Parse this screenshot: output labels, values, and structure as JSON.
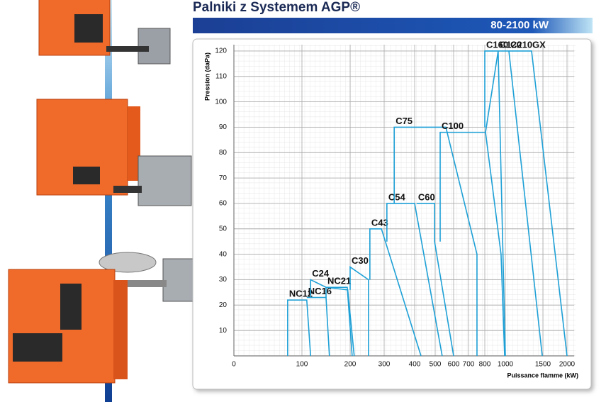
{
  "header": {
    "title": "Palniki z Systemem AGP®",
    "range": "80-2100 kW"
  },
  "chart_data": {
    "type": "envelope",
    "y_label": "Pression (daPa)",
    "x_label": "Puissance flamme (kW)",
    "ylim": [
      0,
      122.5
    ],
    "yticks": [
      10,
      20,
      30,
      40,
      50,
      60,
      70,
      80,
      90,
      100,
      110,
      120
    ],
    "xlim": [
      0,
      2150
    ],
    "xticks": [
      0,
      100,
      200,
      300,
      400,
      500,
      600,
      700,
      800,
      1000,
      1500,
      2000
    ],
    "grid": true,
    "color": "#1ea0d6",
    "series": [
      {
        "name": "NC12",
        "x": [
          79,
          79,
          110,
          118
        ],
        "y": [
          0,
          22,
          22,
          0
        ]
      },
      {
        "name": "NC16",
        "x": [
          110,
          150,
          157
        ],
        "y": [
          23,
          23,
          0
        ]
      },
      {
        "name": "C24",
        "x": [
          118,
          118,
          150,
          195,
          212
        ],
        "y": [
          23,
          30,
          27,
          26,
          0
        ]
      },
      {
        "name": "NC21",
        "x": [
          150,
          150,
          194,
          206
        ],
        "y": [
          23,
          27,
          27,
          0
        ]
      },
      {
        "name": "C30",
        "x": [
          200,
          200,
          254,
          254
        ],
        "y": [
          26,
          35,
          30,
          0
        ]
      },
      {
        "name": "C43",
        "x": [
          258,
          258,
          292,
          431
        ],
        "y": [
          30,
          50,
          50,
          0
        ]
      },
      {
        "name": "C54",
        "x": [
          309,
          309,
          400,
          538
        ],
        "y": [
          45,
          60,
          60,
          0
        ]
      },
      {
        "name": "C60",
        "x": [
          410,
          497,
          497,
          600
        ],
        "y": [
          60,
          60,
          45,
          0
        ]
      },
      {
        "name": "C75",
        "x": [
          333,
          333,
          558,
          752,
          752
        ],
        "y": [
          60,
          90,
          90,
          40,
          0
        ]
      },
      {
        "name": "C100",
        "x": [
          527,
          527,
          807,
          958,
          993
        ],
        "y": [
          45,
          88,
          88,
          40,
          0
        ]
      },
      {
        "name": "C120",
        "x": [
          807,
          930,
          1000
        ],
        "y": [
          88,
          120,
          0
        ]
      },
      {
        "name": "C160",
        "x": [
          800,
          800,
          1047,
          1491
        ],
        "y": [
          90,
          120,
          120,
          0
        ]
      },
      {
        "name": "C210GX",
        "x": [
          1047,
          1349,
          2000
        ],
        "y": [
          120,
          120,
          0
        ]
      }
    ]
  }
}
